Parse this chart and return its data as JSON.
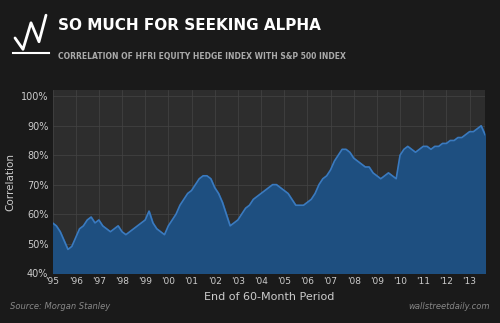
{
  "title_main": "SO MUCH FOR SEEKING ALPHA",
  "title_sub": "CORRELATION OF HFRI EQUITY HEDGE INDEX WITH S&P 500 INDEX",
  "xlabel": "End of 60-Month Period",
  "ylabel": "Correlation",
  "source_left": "Source: Morgan Stanley",
  "source_right": "wallstreetdaily.com",
  "bg_outer": "#1a1a1a",
  "bg_header": "#252525",
  "bg_plot": "#2d2d2d",
  "line_color": "#3a7abf",
  "fill_color": "#1e4f80",
  "grid_color": "#444444",
  "text_color": "#cccccc",
  "title_color": "#ffffff",
  "subtitle_color": "#aaaaaa",
  "ylim": [
    0.4,
    1.02
  ],
  "yticks": [
    0.4,
    0.5,
    0.6,
    0.7,
    0.8,
    0.9,
    1.0
  ],
  "x_values": [
    0,
    1,
    2,
    3,
    4,
    5,
    6,
    7,
    8,
    9,
    10,
    11,
    12,
    13,
    14,
    15,
    16,
    17,
    18,
    19,
    20,
    21,
    22,
    23,
    24,
    25,
    26,
    27,
    28,
    29,
    30,
    31,
    32,
    33,
    34,
    35,
    36,
    37,
    38,
    39,
    40,
    41,
    42,
    43,
    44,
    45,
    46,
    47,
    48,
    49,
    50,
    51,
    52,
    53,
    54,
    55,
    56,
    57,
    58,
    59,
    60,
    61,
    62,
    63,
    64,
    65,
    66,
    67,
    68,
    69,
    70,
    71,
    72,
    73,
    74,
    75,
    76,
    77,
    78,
    79,
    80,
    81,
    82,
    83,
    84,
    85,
    86,
    87,
    88,
    89,
    90,
    91,
    92,
    93,
    94,
    95,
    96,
    97,
    98,
    99,
    100,
    101,
    102,
    103,
    104,
    105,
    106,
    107,
    108,
    109,
    110,
    111,
    112
  ],
  "y_values": [
    0.57,
    0.56,
    0.54,
    0.51,
    0.48,
    0.49,
    0.52,
    0.55,
    0.56,
    0.58,
    0.59,
    0.57,
    0.58,
    0.56,
    0.55,
    0.54,
    0.55,
    0.56,
    0.54,
    0.53,
    0.54,
    0.55,
    0.56,
    0.57,
    0.58,
    0.61,
    0.57,
    0.55,
    0.54,
    0.53,
    0.56,
    0.58,
    0.6,
    0.63,
    0.65,
    0.67,
    0.68,
    0.7,
    0.72,
    0.73,
    0.73,
    0.72,
    0.69,
    0.67,
    0.64,
    0.6,
    0.56,
    0.57,
    0.58,
    0.6,
    0.62,
    0.63,
    0.65,
    0.66,
    0.67,
    0.68,
    0.69,
    0.7,
    0.7,
    0.69,
    0.68,
    0.67,
    0.65,
    0.63,
    0.63,
    0.63,
    0.64,
    0.65,
    0.67,
    0.7,
    0.72,
    0.73,
    0.75,
    0.78,
    0.8,
    0.82,
    0.82,
    0.81,
    0.79,
    0.78,
    0.77,
    0.76,
    0.76,
    0.74,
    0.73,
    0.72,
    0.73,
    0.74,
    0.73,
    0.72,
    0.8,
    0.82,
    0.83,
    0.82,
    0.81,
    0.82,
    0.83,
    0.83,
    0.82,
    0.83,
    0.83,
    0.84,
    0.84,
    0.85,
    0.85,
    0.86,
    0.86,
    0.87,
    0.88,
    0.88,
    0.89,
    0.9,
    0.87
  ],
  "xtick_positions": [
    0,
    6,
    12,
    18,
    24,
    30,
    36,
    42,
    48,
    54,
    60,
    66,
    72,
    78,
    84,
    90,
    96,
    102,
    108
  ],
  "xtick_labels": [
    "'95",
    "'96",
    "'97",
    "'98",
    "'99",
    "'00",
    "'01",
    "'02",
    "'03",
    "'04",
    "'05",
    "'06",
    "'07",
    "'08",
    "'09",
    "'10",
    "'11",
    "'12",
    "'13"
  ]
}
